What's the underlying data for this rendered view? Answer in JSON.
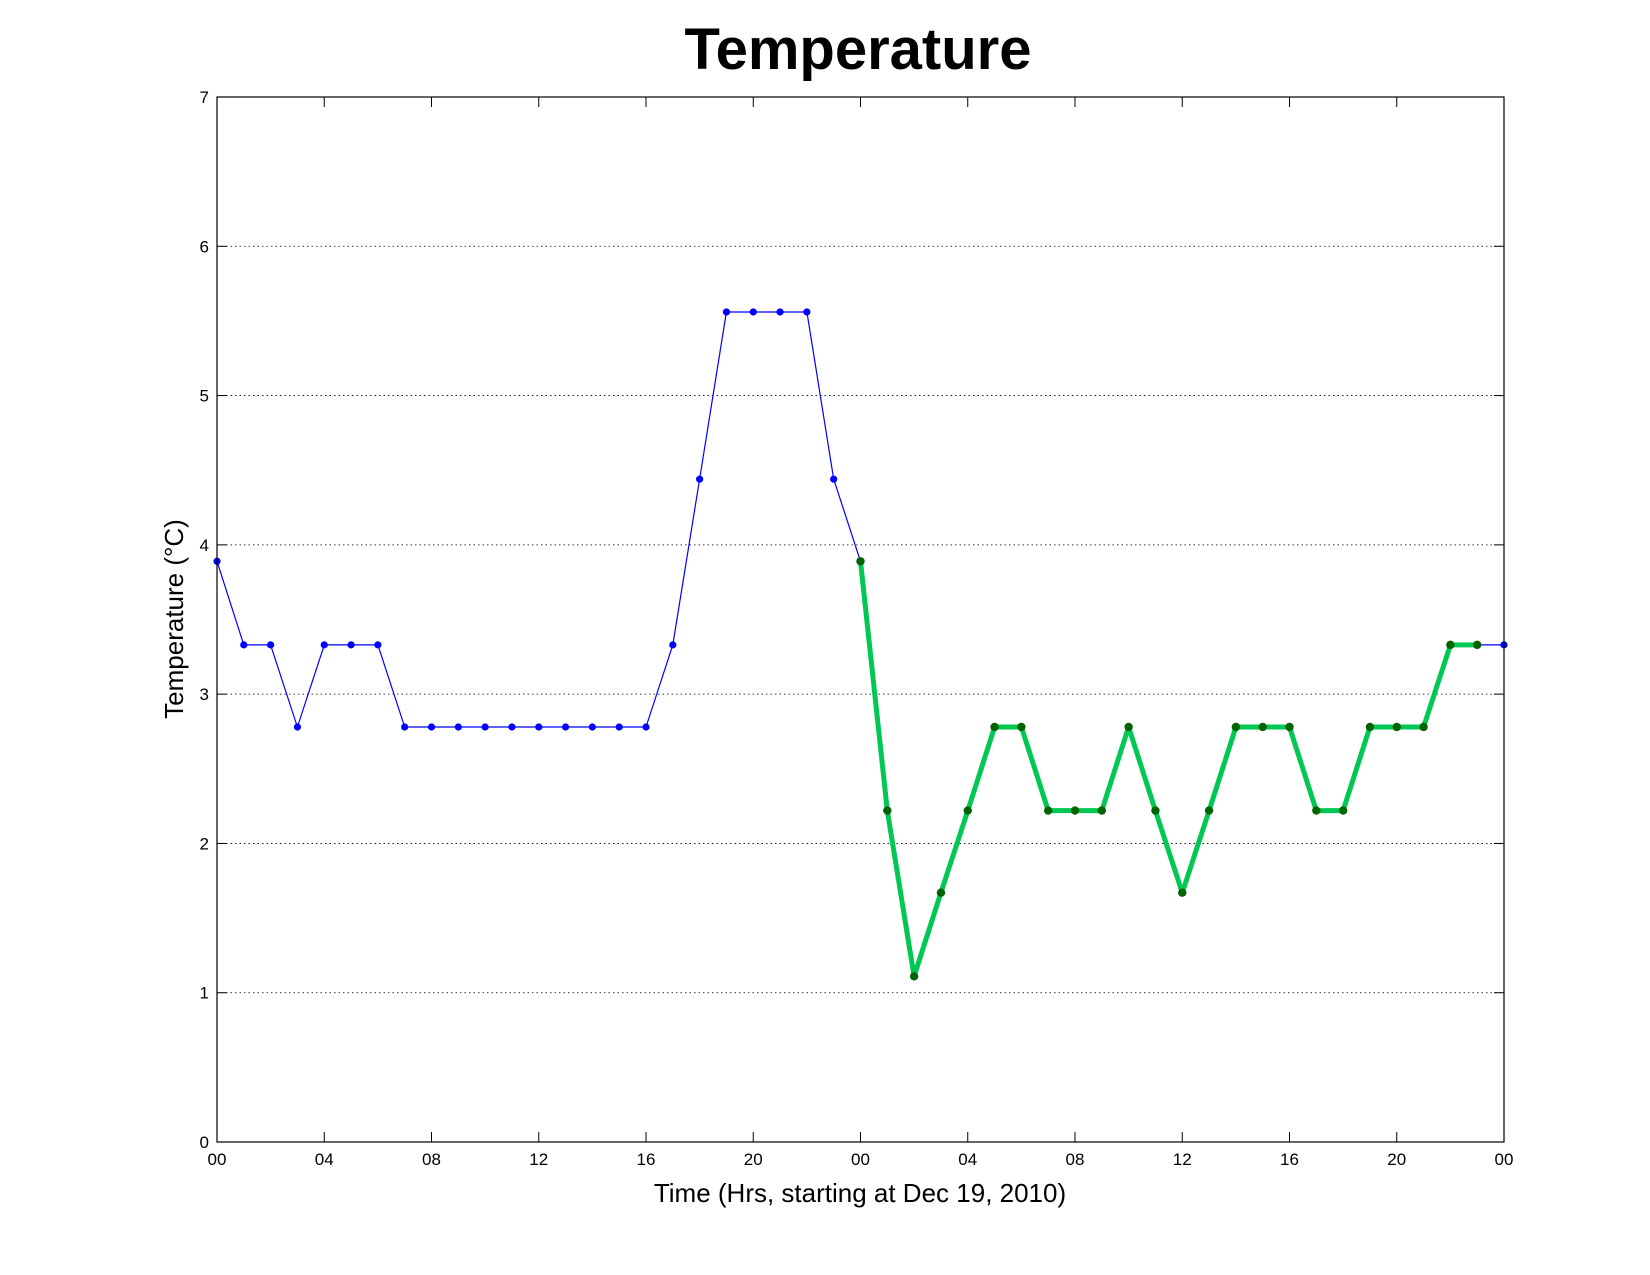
{
  "chart_data": {
    "type": "line",
    "title": "Temperature",
    "xlabel": "Time (Hrs, starting at Dec 19, 2010)",
    "ylabel": "Temperature (°C)",
    "xlim": [
      0,
      48
    ],
    "ylim": [
      0,
      7
    ],
    "x_tick_labels": [
      "00",
      "04",
      "08",
      "12",
      "16",
      "20",
      "00",
      "04",
      "08",
      "12",
      "16",
      "20",
      "00"
    ],
    "x_tick_values": [
      0,
      4,
      8,
      12,
      16,
      20,
      24,
      28,
      32,
      36,
      40,
      44,
      48
    ],
    "y_tick_labels": [
      "0",
      "1",
      "2",
      "3",
      "4",
      "5",
      "6",
      "7"
    ],
    "y_tick_values": [
      0,
      1,
      2,
      3,
      4,
      5,
      6,
      7
    ],
    "grid": "horizontal dotted",
    "series": [
      {
        "color": "#0000ff",
        "marker_color": "#0000ff",
        "line_style": "thin",
        "x": [
          0,
          1,
          2,
          3,
          4,
          5,
          6,
          7,
          8,
          9,
          10,
          11,
          12,
          13,
          14,
          15,
          16,
          17,
          18,
          19,
          20,
          21,
          22,
          23,
          24,
          25,
          26,
          27,
          28,
          29,
          30,
          31,
          32,
          33,
          34,
          35,
          36,
          37,
          38,
          39,
          40,
          41,
          42,
          43,
          44,
          45,
          46,
          47,
          48
        ],
        "values": [
          3.89,
          3.33,
          3.33,
          2.78,
          3.33,
          3.33,
          3.33,
          2.78,
          2.78,
          2.78,
          2.78,
          2.78,
          2.78,
          2.78,
          2.78,
          2.78,
          2.78,
          3.33,
          4.44,
          5.56,
          5.56,
          5.56,
          5.56,
          4.44,
          3.89,
          2.22,
          1.11,
          1.67,
          2.22,
          2.78,
          2.78,
          2.22,
          2.22,
          2.22,
          2.78,
          2.22,
          1.67,
          2.22,
          2.78,
          2.78,
          2.78,
          2.22,
          2.22,
          2.78,
          2.78,
          2.78,
          3.33,
          3.33,
          3.33
        ]
      },
      {
        "color": "#00c853",
        "marker_color": "#006400",
        "line_style": "thick",
        "x": [
          24,
          25,
          26,
          27,
          28,
          29,
          30,
          31,
          32,
          33,
          34,
          35,
          36,
          37,
          38,
          39,
          40,
          41,
          42,
          43,
          44,
          45,
          46,
          47
        ],
        "values": [
          3.89,
          2.22,
          1.11,
          1.67,
          2.22,
          2.78,
          2.78,
          2.22,
          2.22,
          2.22,
          2.78,
          2.22,
          1.67,
          2.22,
          2.78,
          2.78,
          2.78,
          2.22,
          2.22,
          2.78,
          2.78,
          2.78,
          3.33,
          3.33
        ]
      }
    ]
  }
}
